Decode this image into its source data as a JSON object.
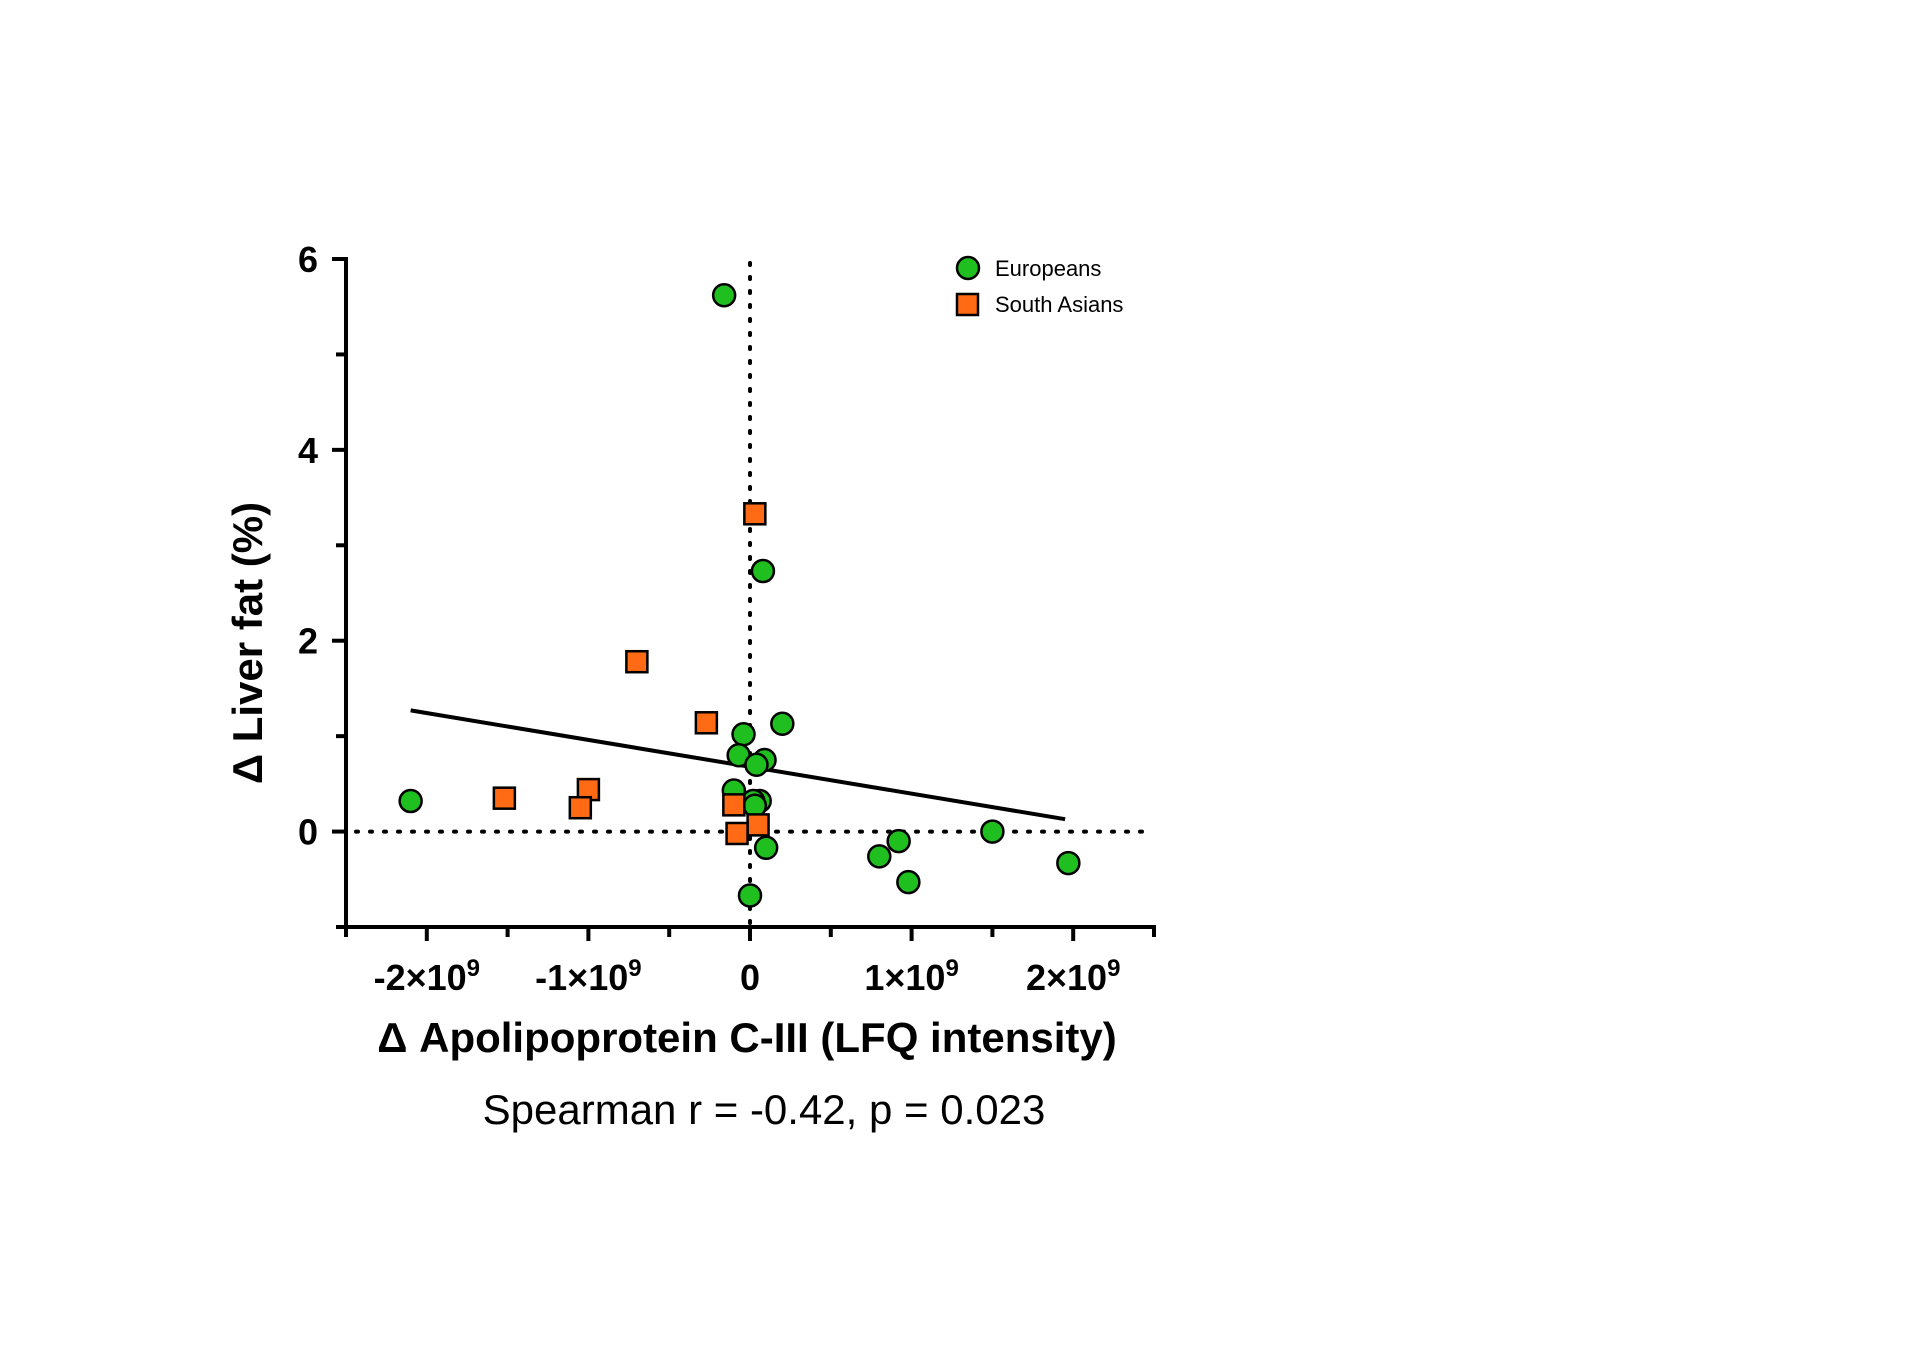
{
  "chart_data": {
    "type": "scatter",
    "xlabel": "Δ Apolipoprotein C-III (LFQ intensity)",
    "ylabel": "Δ Liver fat (%)",
    "annotation": "Spearman r = -0.42, p = 0.023",
    "xlim": [
      -2500000000.0,
      2500000000.0
    ],
    "ylim": [
      -1,
      6
    ],
    "x_ticks": [
      {
        "value": -2000000000.0,
        "mant": "-2×10",
        "exp": "9"
      },
      {
        "value": -1000000000.0,
        "mant": "-1×10",
        "exp": "9"
      },
      {
        "value": 0,
        "mant": "0",
        "exp": ""
      },
      {
        "value": 1000000000.0,
        "mant": "1×10",
        "exp": "9"
      },
      {
        "value": 2000000000.0,
        "mant": "2×10",
        "exp": "9"
      }
    ],
    "x_minor_ticks": [
      -2500000000.0,
      -1500000000.0,
      -500000000.0,
      500000000.0,
      1500000000.0,
      2500000000.0
    ],
    "y_ticks": [
      {
        "value": 0,
        "label": "0"
      },
      {
        "value": 2,
        "label": "2"
      },
      {
        "value": 4,
        "label": "4"
      },
      {
        "value": 6,
        "label": "6"
      }
    ],
    "y_minor_ticks": [
      -1,
      1,
      3,
      5
    ],
    "reference_lines": {
      "x": 0,
      "y": 0,
      "style": "dotted"
    },
    "regression_line": {
      "x": [
        -2100000000.0,
        1950000000.0
      ],
      "y": [
        1.27,
        0.13
      ]
    },
    "legend_position": "top-right",
    "series": [
      {
        "name": "Europeans",
        "marker": "circle",
        "color": "#1fbf1f",
        "points": [
          {
            "x": -2100000000.0,
            "y": 0.32
          },
          {
            "x": -160000000.0,
            "y": 5.62
          },
          {
            "x": 80000000.0,
            "y": 2.73
          },
          {
            "x": 200000000.0,
            "y": 1.13
          },
          {
            "x": -40000000.0,
            "y": 1.02
          },
          {
            "x": -70000000.0,
            "y": 0.8
          },
          {
            "x": 90000000.0,
            "y": 0.75
          },
          {
            "x": 40000000.0,
            "y": 0.7
          },
          {
            "x": -100000000.0,
            "y": 0.43
          },
          {
            "x": 60000000.0,
            "y": 0.32
          },
          {
            "x": 20000000.0,
            "y": 0.32
          },
          {
            "x": 30000000.0,
            "y": 0.27
          },
          {
            "x": 100000000.0,
            "y": -0.17
          },
          {
            "x": 0.0,
            "y": -0.67
          },
          {
            "x": 800000000.0,
            "y": -0.26
          },
          {
            "x": 920000000.0,
            "y": -0.1
          },
          {
            "x": 980000000.0,
            "y": -0.53
          },
          {
            "x": 1500000000.0,
            "y": 0.0
          },
          {
            "x": 1970000000.0,
            "y": -0.33
          }
        ]
      },
      {
        "name": "South Asians",
        "marker": "square",
        "color": "#ff6a14",
        "points": [
          {
            "x": 30000000.0,
            "y": 3.33
          },
          {
            "x": -700000000.0,
            "y": 1.78
          },
          {
            "x": -270000000.0,
            "y": 1.14
          },
          {
            "x": -1520000000.0,
            "y": 0.35
          },
          {
            "x": -1000000000.0,
            "y": 0.44
          },
          {
            "x": -1050000000.0,
            "y": 0.25
          },
          {
            "x": -100000000.0,
            "y": 0.28
          },
          {
            "x": 50000000.0,
            "y": 0.07
          },
          {
            "x": -80000000.0,
            "y": -0.02
          }
        ]
      }
    ]
  }
}
